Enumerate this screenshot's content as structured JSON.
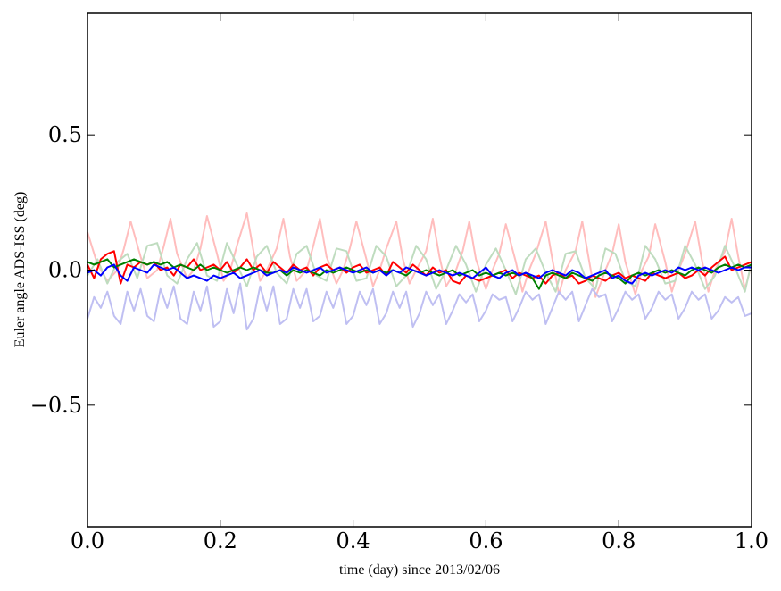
{
  "chart_data": {
    "type": "line",
    "title": "",
    "xlabel": "time (day) since 2013/02/06",
    "ylabel": "Euler angle ADS-ISS (deg)",
    "xlim": [
      0.0,
      1.0
    ],
    "ylim": [
      -0.95,
      0.95
    ],
    "x_ticks": [
      0.0,
      0.2,
      0.4,
      0.6,
      0.8,
      1.0
    ],
    "x_tick_labels": [
      "0.0",
      "0.2",
      "0.4",
      "0.6",
      "0.8",
      "1.0"
    ],
    "y_ticks": [
      0.5,
      0.0,
      -0.5
    ],
    "y_tick_labels": [
      "0.5",
      "0.0",
      "−0.5"
    ],
    "grid": false,
    "legend": "none",
    "series": [
      {
        "color": "#ffbdbd",
        "x": [
          0.0,
          0.015,
          0.03,
          0.045,
          0.055,
          0.065,
          0.08,
          0.09,
          0.105,
          0.115,
          0.125,
          0.135,
          0.15,
          0.16,
          0.17,
          0.18,
          0.195,
          0.205,
          0.215,
          0.225,
          0.24,
          0.25,
          0.26,
          0.27,
          0.285,
          0.295,
          0.305,
          0.315,
          0.33,
          0.34,
          0.35,
          0.36,
          0.375,
          0.385,
          0.395,
          0.405,
          0.42,
          0.43,
          0.44,
          0.45,
          0.465,
          0.475,
          0.485,
          0.495,
          0.51,
          0.52,
          0.53,
          0.54,
          0.555,
          0.565,
          0.575,
          0.585,
          0.6,
          0.61,
          0.62,
          0.63,
          0.645,
          0.655,
          0.665,
          0.675,
          0.69,
          0.7,
          0.71,
          0.72,
          0.735,
          0.745,
          0.755,
          0.765,
          0.78,
          0.79,
          0.8,
          0.81,
          0.825,
          0.835,
          0.845,
          0.855,
          0.87,
          0.88,
          0.89,
          0.9,
          0.915,
          0.925,
          0.935,
          0.945,
          0.96,
          0.97,
          0.98,
          0.99,
          1.0
        ],
        "y": [
          0.14,
          0.02,
          -0.04,
          0.0,
          0.08,
          0.18,
          0.05,
          -0.03,
          0.0,
          0.09,
          0.19,
          0.06,
          -0.03,
          0.0,
          0.08,
          0.2,
          0.06,
          -0.04,
          0.0,
          0.09,
          0.21,
          0.07,
          -0.04,
          0.0,
          0.08,
          0.19,
          0.05,
          -0.04,
          0.0,
          0.09,
          0.19,
          0.05,
          -0.05,
          0.0,
          0.08,
          0.18,
          0.04,
          -0.06,
          0.0,
          0.08,
          0.18,
          0.04,
          -0.05,
          0.0,
          0.07,
          0.19,
          0.05,
          -0.06,
          0.0,
          0.07,
          0.18,
          0.04,
          -0.07,
          0.0,
          0.06,
          0.17,
          0.03,
          -0.08,
          0.0,
          0.06,
          0.18,
          0.04,
          -0.09,
          0.0,
          0.07,
          0.18,
          0.04,
          -0.1,
          0.0,
          0.06,
          0.17,
          0.03,
          -0.09,
          0.0,
          0.05,
          0.17,
          0.03,
          -0.08,
          0.0,
          0.06,
          0.18,
          0.04,
          -0.08,
          0.0,
          0.07,
          0.19,
          0.05,
          -0.07,
          0.02
        ]
      },
      {
        "color": "#bfdcbf",
        "x": [
          0.0,
          0.015,
          0.03,
          0.045,
          0.06,
          0.075,
          0.09,
          0.105,
          0.12,
          0.135,
          0.15,
          0.165,
          0.18,
          0.195,
          0.21,
          0.225,
          0.24,
          0.255,
          0.27,
          0.285,
          0.3,
          0.315,
          0.33,
          0.345,
          0.36,
          0.375,
          0.39,
          0.405,
          0.42,
          0.435,
          0.45,
          0.465,
          0.48,
          0.495,
          0.51,
          0.525,
          0.54,
          0.555,
          0.57,
          0.585,
          0.6,
          0.615,
          0.63,
          0.645,
          0.66,
          0.675,
          0.69,
          0.705,
          0.72,
          0.735,
          0.75,
          0.765,
          0.78,
          0.795,
          0.81,
          0.825,
          0.84,
          0.855,
          0.87,
          0.885,
          0.9,
          0.915,
          0.93,
          0.945,
          0.96,
          0.975,
          0.99,
          1.0
        ],
        "y": [
          -0.02,
          0.04,
          -0.05,
          0.03,
          0.06,
          -0.03,
          0.09,
          0.1,
          -0.02,
          -0.05,
          0.04,
          0.1,
          -0.02,
          -0.04,
          0.1,
          0.02,
          -0.06,
          0.05,
          0.09,
          -0.01,
          -0.05,
          0.06,
          0.09,
          -0.02,
          -0.04,
          0.08,
          0.07,
          -0.04,
          -0.03,
          0.09,
          0.05,
          -0.06,
          -0.02,
          0.09,
          0.04,
          -0.07,
          0.0,
          0.09,
          0.02,
          -0.08,
          0.02,
          0.08,
          0.0,
          -0.09,
          0.04,
          0.08,
          -0.01,
          -0.08,
          0.06,
          0.07,
          -0.03,
          -0.07,
          0.08,
          0.06,
          -0.04,
          -0.06,
          0.09,
          0.04,
          -0.05,
          -0.04,
          0.09,
          0.02,
          -0.07,
          -0.02,
          0.09,
          0.01,
          -0.08,
          0.03
        ]
      },
      {
        "color": "#bfbff2",
        "x": [
          0.0,
          0.01,
          0.02,
          0.03,
          0.04,
          0.05,
          0.06,
          0.07,
          0.08,
          0.09,
          0.1,
          0.11,
          0.12,
          0.13,
          0.14,
          0.15,
          0.16,
          0.17,
          0.18,
          0.19,
          0.2,
          0.21,
          0.22,
          0.23,
          0.24,
          0.25,
          0.26,
          0.27,
          0.28,
          0.29,
          0.3,
          0.31,
          0.32,
          0.33,
          0.34,
          0.35,
          0.36,
          0.37,
          0.38,
          0.39,
          0.4,
          0.41,
          0.42,
          0.43,
          0.44,
          0.45,
          0.46,
          0.47,
          0.48,
          0.49,
          0.5,
          0.51,
          0.52,
          0.53,
          0.54,
          0.55,
          0.56,
          0.57,
          0.58,
          0.59,
          0.6,
          0.61,
          0.62,
          0.63,
          0.64,
          0.65,
          0.66,
          0.67,
          0.68,
          0.69,
          0.7,
          0.71,
          0.72,
          0.73,
          0.74,
          0.75,
          0.76,
          0.77,
          0.78,
          0.79,
          0.8,
          0.81,
          0.82,
          0.83,
          0.84,
          0.85,
          0.86,
          0.87,
          0.88,
          0.89,
          0.9,
          0.91,
          0.92,
          0.93,
          0.94,
          0.95,
          0.96,
          0.97,
          0.98,
          0.99,
          1.0
        ],
        "y": [
          -0.18,
          -0.1,
          -0.14,
          -0.08,
          -0.17,
          -0.2,
          -0.08,
          -0.15,
          -0.07,
          -0.17,
          -0.19,
          -0.07,
          -0.14,
          -0.06,
          -0.18,
          -0.2,
          -0.08,
          -0.15,
          -0.06,
          -0.21,
          -0.19,
          -0.07,
          -0.16,
          -0.05,
          -0.22,
          -0.18,
          -0.06,
          -0.15,
          -0.06,
          -0.2,
          -0.18,
          -0.07,
          -0.14,
          -0.07,
          -0.19,
          -0.17,
          -0.08,
          -0.14,
          -0.07,
          -0.2,
          -0.17,
          -0.08,
          -0.13,
          -0.07,
          -0.2,
          -0.16,
          -0.08,
          -0.14,
          -0.08,
          -0.21,
          -0.16,
          -0.08,
          -0.13,
          -0.09,
          -0.2,
          -0.15,
          -0.09,
          -0.12,
          -0.09,
          -0.19,
          -0.15,
          -0.09,
          -0.11,
          -0.1,
          -0.19,
          -0.14,
          -0.08,
          -0.11,
          -0.09,
          -0.2,
          -0.14,
          -0.08,
          -0.11,
          -0.08,
          -0.19,
          -0.13,
          -0.07,
          -0.1,
          -0.09,
          -0.19,
          -0.14,
          -0.08,
          -0.11,
          -0.09,
          -0.18,
          -0.14,
          -0.08,
          -0.11,
          -0.09,
          -0.18,
          -0.14,
          -0.08,
          -0.11,
          -0.09,
          -0.18,
          -0.15,
          -0.1,
          -0.12,
          -0.1,
          -0.17,
          -0.16
        ]
      },
      {
        "color": "#ff0000",
        "x": [
          0.0,
          0.01,
          0.02,
          0.03,
          0.04,
          0.05,
          0.06,
          0.07,
          0.08,
          0.09,
          0.1,
          0.11,
          0.12,
          0.13,
          0.14,
          0.15,
          0.16,
          0.17,
          0.18,
          0.19,
          0.2,
          0.21,
          0.22,
          0.23,
          0.24,
          0.25,
          0.26,
          0.27,
          0.28,
          0.29,
          0.3,
          0.31,
          0.32,
          0.33,
          0.34,
          0.35,
          0.36,
          0.37,
          0.38,
          0.39,
          0.4,
          0.41,
          0.42,
          0.43,
          0.44,
          0.45,
          0.46,
          0.47,
          0.48,
          0.49,
          0.5,
          0.51,
          0.52,
          0.53,
          0.54,
          0.55,
          0.56,
          0.57,
          0.58,
          0.59,
          0.6,
          0.61,
          0.62,
          0.63,
          0.64,
          0.65,
          0.66,
          0.67,
          0.68,
          0.69,
          0.7,
          0.71,
          0.72,
          0.73,
          0.74,
          0.75,
          0.76,
          0.77,
          0.78,
          0.79,
          0.8,
          0.81,
          0.82,
          0.83,
          0.84,
          0.85,
          0.86,
          0.87,
          0.88,
          0.89,
          0.9,
          0.91,
          0.92,
          0.93,
          0.94,
          0.95,
          0.96,
          0.97,
          0.98,
          0.99,
          1.0
        ],
        "y": [
          0.02,
          -0.03,
          0.04,
          0.06,
          0.07,
          -0.05,
          0.02,
          0.01,
          0.03,
          0.02,
          0.03,
          0.0,
          0.01,
          -0.02,
          0.02,
          0.01,
          0.04,
          0.0,
          0.01,
          0.02,
          0.0,
          0.03,
          -0.01,
          0.01,
          0.04,
          0.0,
          0.02,
          -0.01,
          0.03,
          0.01,
          -0.01,
          0.02,
          0.0,
          0.01,
          -0.02,
          0.01,
          0.02,
          0.0,
          0.01,
          -0.01,
          0.01,
          0.02,
          -0.01,
          0.0,
          0.01,
          -0.02,
          0.03,
          0.01,
          -0.01,
          0.02,
          0.0,
          -0.02,
          0.01,
          -0.01,
          0.0,
          -0.04,
          -0.05,
          -0.02,
          -0.03,
          -0.04,
          -0.03,
          -0.02,
          -0.01,
          0.0,
          -0.03,
          -0.01,
          -0.02,
          -0.03,
          -0.02,
          -0.05,
          -0.02,
          -0.01,
          -0.03,
          -0.02,
          -0.05,
          -0.04,
          -0.02,
          -0.03,
          -0.04,
          -0.02,
          -0.01,
          -0.03,
          -0.02,
          -0.03,
          -0.04,
          -0.01,
          -0.02,
          -0.03,
          -0.02,
          -0.01,
          -0.03,
          -0.02,
          0.0,
          -0.02,
          0.01,
          0.03,
          0.05,
          0.0,
          0.01,
          0.02,
          0.03
        ]
      },
      {
        "color": "#008000",
        "x": [
          0.0,
          0.01,
          0.02,
          0.03,
          0.04,
          0.05,
          0.06,
          0.07,
          0.08,
          0.09,
          0.1,
          0.11,
          0.12,
          0.13,
          0.14,
          0.15,
          0.16,
          0.17,
          0.18,
          0.19,
          0.2,
          0.21,
          0.22,
          0.23,
          0.24,
          0.25,
          0.26,
          0.27,
          0.28,
          0.29,
          0.3,
          0.31,
          0.32,
          0.33,
          0.34,
          0.35,
          0.36,
          0.37,
          0.38,
          0.39,
          0.4,
          0.41,
          0.42,
          0.43,
          0.44,
          0.45,
          0.46,
          0.47,
          0.48,
          0.49,
          0.5,
          0.51,
          0.52,
          0.53,
          0.54,
          0.55,
          0.56,
          0.57,
          0.58,
          0.59,
          0.6,
          0.61,
          0.62,
          0.63,
          0.64,
          0.65,
          0.66,
          0.67,
          0.68,
          0.69,
          0.7,
          0.71,
          0.72,
          0.73,
          0.74,
          0.75,
          0.76,
          0.77,
          0.78,
          0.79,
          0.8,
          0.81,
          0.82,
          0.83,
          0.84,
          0.85,
          0.86,
          0.87,
          0.88,
          0.89,
          0.9,
          0.91,
          0.92,
          0.93,
          0.94,
          0.95,
          0.96,
          0.97,
          0.98,
          0.99,
          1.0
        ],
        "y": [
          0.03,
          0.02,
          0.03,
          0.04,
          0.01,
          0.02,
          0.03,
          0.04,
          0.03,
          0.02,
          0.03,
          0.02,
          0.03,
          0.01,
          0.02,
          0.01,
          0.0,
          0.02,
          0.0,
          0.01,
          0.0,
          -0.01,
          0.0,
          0.01,
          0.0,
          0.01,
          0.0,
          -0.01,
          -0.01,
          0.0,
          -0.02,
          0.0,
          -0.01,
          0.0,
          -0.01,
          -0.02,
          0.0,
          -0.01,
          0.0,
          0.01,
          0.0,
          -0.01,
          0.0,
          -0.01,
          0.0,
          -0.01,
          0.0,
          -0.01,
          -0.02,
          0.0,
          -0.01,
          0.0,
          -0.01,
          -0.02,
          -0.01,
          0.0,
          -0.02,
          -0.01,
          0.0,
          -0.02,
          -0.01,
          -0.02,
          -0.01,
          -0.02,
          -0.01,
          -0.02,
          -0.01,
          -0.03,
          -0.07,
          -0.02,
          -0.01,
          -0.02,
          -0.03,
          -0.01,
          -0.02,
          -0.03,
          -0.04,
          -0.02,
          -0.01,
          -0.02,
          -0.03,
          -0.05,
          -0.02,
          -0.01,
          -0.02,
          -0.01,
          0.0,
          -0.01,
          0.0,
          -0.01,
          -0.02,
          0.0,
          0.01,
          0.0,
          -0.01,
          0.01,
          0.02,
          0.01,
          0.02,
          0.01,
          0.02
        ]
      },
      {
        "color": "#0000ff",
        "x": [
          0.0,
          0.01,
          0.02,
          0.03,
          0.04,
          0.05,
          0.06,
          0.07,
          0.08,
          0.09,
          0.1,
          0.11,
          0.12,
          0.13,
          0.14,
          0.15,
          0.16,
          0.17,
          0.18,
          0.19,
          0.2,
          0.21,
          0.22,
          0.23,
          0.24,
          0.25,
          0.26,
          0.27,
          0.28,
          0.29,
          0.3,
          0.31,
          0.32,
          0.33,
          0.34,
          0.35,
          0.36,
          0.37,
          0.38,
          0.39,
          0.4,
          0.41,
          0.42,
          0.43,
          0.44,
          0.45,
          0.46,
          0.47,
          0.48,
          0.49,
          0.5,
          0.51,
          0.52,
          0.53,
          0.54,
          0.55,
          0.56,
          0.57,
          0.58,
          0.59,
          0.6,
          0.61,
          0.62,
          0.63,
          0.64,
          0.65,
          0.66,
          0.67,
          0.68,
          0.69,
          0.7,
          0.71,
          0.72,
          0.73,
          0.74,
          0.75,
          0.76,
          0.77,
          0.78,
          0.79,
          0.8,
          0.81,
          0.82,
          0.83,
          0.84,
          0.85,
          0.86,
          0.87,
          0.88,
          0.89,
          0.9,
          0.91,
          0.92,
          0.93,
          0.94,
          0.95,
          0.96,
          0.97,
          0.98,
          0.99,
          1.0
        ],
        "y": [
          -0.01,
          0.0,
          -0.02,
          0.01,
          0.02,
          -0.02,
          -0.04,
          0.01,
          0.0,
          -0.01,
          0.02,
          0.01,
          0.0,
          0.01,
          -0.01,
          -0.03,
          -0.02,
          -0.03,
          -0.04,
          -0.02,
          -0.03,
          -0.02,
          -0.01,
          -0.03,
          -0.02,
          -0.01,
          0.0,
          -0.02,
          -0.01,
          0.0,
          -0.01,
          0.01,
          0.0,
          -0.01,
          0.0,
          0.01,
          -0.01,
          0.0,
          0.01,
          0.0,
          -0.01,
          0.0,
          0.01,
          -0.01,
          0.0,
          -0.02,
          0.0,
          -0.01,
          0.01,
          0.0,
          -0.01,
          -0.02,
          -0.01,
          0.0,
          -0.01,
          -0.02,
          -0.01,
          -0.02,
          -0.03,
          -0.01,
          0.01,
          -0.02,
          -0.03,
          -0.01,
          0.0,
          -0.02,
          -0.01,
          -0.02,
          -0.03,
          -0.01,
          0.0,
          -0.01,
          -0.02,
          0.0,
          -0.01,
          -0.03,
          -0.02,
          -0.01,
          0.0,
          -0.03,
          -0.02,
          -0.04,
          -0.05,
          -0.02,
          -0.01,
          -0.02,
          -0.01,
          0.0,
          -0.01,
          0.01,
          0.0,
          0.01,
          0.0,
          0.01,
          0.0,
          -0.01,
          0.0,
          0.01,
          0.0,
          0.01,
          0.01
        ]
      }
    ]
  }
}
